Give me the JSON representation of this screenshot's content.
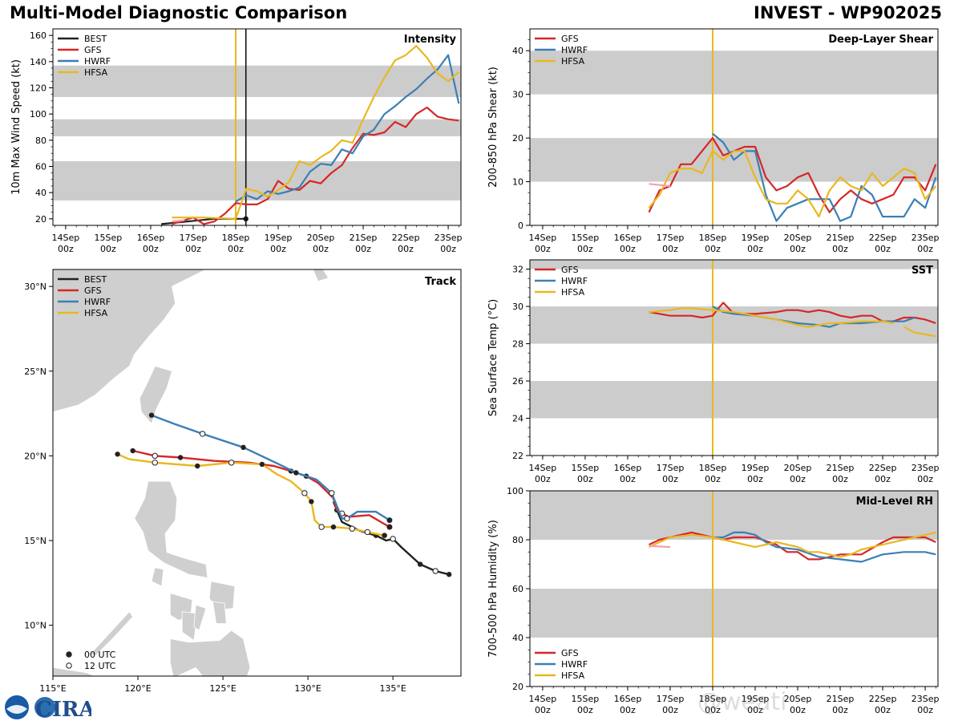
{
  "title": "Multi-Model Diagnostic Comparison",
  "storm": "INVEST - WP902025",
  "colors": {
    "BEST": "#222222",
    "GFS": "#d62728",
    "HWRF": "#3a7fb5",
    "HFSA": "#e8b820",
    "shade": "#cccccc",
    "init": "#e8b820",
    "prior": "#f4a0b0"
  },
  "watermark": "@weati",
  "time_ticks": [
    "14Sep",
    "15Sep",
    "16Sep",
    "17Sep",
    "18Sep",
    "19Sep",
    "20Sep",
    "21Sep",
    "22Sep",
    "23Sep"
  ],
  "time_tick_hour": "00z",
  "chart_data": [
    {
      "id": "intensity",
      "type": "line",
      "title": "Intensity",
      "ylabel": "10m Max Wind Speed (kt)",
      "xlim": [
        -4.3,
        5.3
      ],
      "ylim": [
        15,
        165
      ],
      "yticks": [
        20,
        40,
        60,
        80,
        100,
        120,
        140,
        160
      ],
      "shade": [
        [
          34,
          64
        ],
        [
          83,
          96
        ],
        [
          113,
          137
        ]
      ],
      "init_x": 0,
      "best_time_x": 0.24,
      "legend": [
        "BEST",
        "GFS",
        "HWRF",
        "HFSA"
      ],
      "series": [
        {
          "name": "BEST",
          "x": [
            -1.75,
            -0.5,
            0,
            0.24
          ],
          "y": [
            16,
            20,
            20,
            20
          ]
        },
        {
          "name": "GFS",
          "x": [
            -1.5,
            -1,
            -0.75,
            -0.5,
            -0.25,
            0,
            0.25,
            0.5,
            0.75,
            1,
            1.25,
            1.5,
            1.75,
            2,
            2.25,
            2.5,
            2.75,
            3,
            3.25,
            3.5,
            3.75,
            4,
            4.25,
            4.5,
            4.75,
            5,
            5.25
          ],
          "y": [
            16,
            21,
            16,
            18,
            24,
            32,
            31,
            31,
            35,
            49,
            43,
            42,
            49,
            47,
            55,
            61,
            74,
            85,
            84,
            86,
            94,
            90,
            100,
            105,
            98,
            96,
            95
          ]
        },
        {
          "name": "HWRF",
          "x": [
            0,
            0.25,
            0.5,
            0.75,
            1,
            1.25,
            1.5,
            1.75,
            2,
            2.25,
            2.5,
            2.75,
            3,
            3.25,
            3.5,
            3.75,
            4,
            4.25,
            4.5,
            4.75,
            5,
            5.25
          ],
          "y": [
            33,
            38,
            35,
            41,
            39,
            41,
            44,
            56,
            62,
            61,
            73,
            70,
            83,
            88,
            100,
            106,
            113,
            119,
            127,
            134,
            145,
            108
          ]
        },
        {
          "name": "HFSA",
          "x": [
            -1.5,
            -0.75,
            0,
            0.25,
            0.5,
            0.75,
            1,
            1.25,
            1.5,
            1.75,
            2,
            2.25,
            2.5,
            2.75,
            3,
            3.25,
            3.5,
            3.75,
            4,
            4.25,
            4.5,
            4.75,
            5,
            5.25
          ],
          "y": [
            21,
            21,
            20,
            43,
            41,
            37,
            42,
            48,
            64,
            61,
            67,
            72,
            80,
            78,
            96,
            113,
            128,
            141,
            145,
            152,
            143,
            131,
            125,
            132
          ]
        },
        {
          "name": "prior",
          "x": [
            -1.5,
            -1.2
          ],
          "y": [
            18,
            19
          ]
        }
      ]
    },
    {
      "id": "shear",
      "type": "line",
      "title": "Deep-Layer Shear",
      "ylabel": "200-850 hPa Shear (kt)",
      "xlim": [
        -4.3,
        5.3
      ],
      "ylim": [
        0,
        45
      ],
      "yticks": [
        0,
        10,
        20,
        30,
        40
      ],
      "shade": [
        [
          10,
          20
        ],
        [
          30,
          40
        ]
      ],
      "init_x": 0,
      "legend": [
        "GFS",
        "HWRF",
        "HFSA"
      ],
      "series": [
        {
          "name": "GFS",
          "x": [
            -1.5,
            -1.25,
            -1,
            -0.75,
            -0.5,
            -0.25,
            0,
            0.25,
            0.5,
            0.75,
            1,
            1.25,
            1.5,
            1.75,
            2,
            2.25,
            2.5,
            2.75,
            3,
            3.25,
            3.5,
            3.75,
            4,
            4.25,
            4.5,
            4.75,
            5,
            5.25
          ],
          "y": [
            3,
            8,
            9,
            14,
            14,
            17,
            20,
            16,
            17,
            18,
            18,
            11,
            8,
            9,
            11,
            12,
            7,
            3,
            6,
            8,
            6,
            5,
            6,
            7,
            11,
            11,
            8,
            14
          ]
        },
        {
          "name": "HWRF",
          "x": [
            0,
            0.25,
            0.5,
            0.75,
            1,
            1.25,
            1.5,
            1.75,
            2,
            2.25,
            2.5,
            2.75,
            3,
            3.25,
            3.5,
            3.75,
            4,
            4.25,
            4.5,
            4.75,
            5,
            5.25
          ],
          "y": [
            21,
            19,
            15,
            17,
            17,
            7,
            1,
            4,
            5,
            6,
            6,
            6,
            1,
            2,
            9,
            7,
            2,
            2,
            2,
            6,
            4,
            11
          ]
        },
        {
          "name": "HFSA",
          "x": [
            -1.5,
            -1.25,
            -1,
            -0.75,
            -0.5,
            -0.25,
            0,
            0.25,
            0.5,
            0.75,
            1,
            1.25,
            1.5,
            1.75,
            2,
            2.25,
            2.5,
            2.75,
            3,
            3.25,
            3.5,
            3.75,
            4,
            4.25,
            4.5,
            4.75,
            5,
            5.25
          ],
          "y": [
            4,
            7,
            12,
            13,
            13,
            12,
            17,
            15,
            17,
            17,
            11,
            6,
            5,
            5,
            8,
            6,
            2,
            8,
            11,
            9,
            8,
            12,
            9,
            11,
            13,
            12,
            6,
            9
          ]
        },
        {
          "name": "prior",
          "x": [
            -1.5,
            -1
          ],
          "y": [
            9.5,
            9
          ]
        }
      ]
    },
    {
      "id": "sst",
      "type": "line",
      "title": "SST",
      "ylabel": "Sea Surface Temp (°C)",
      "xlim": [
        -4.3,
        5.3
      ],
      "ylim": [
        22,
        32.5
      ],
      "yticks": [
        22,
        24,
        26,
        28,
        30,
        32
      ],
      "shade": [
        [
          24,
          26
        ],
        [
          28,
          30
        ],
        [
          32,
          32.5
        ]
      ],
      "init_x": 0,
      "legend": [
        "GFS",
        "HWRF",
        "HFSA"
      ],
      "series": [
        {
          "name": "GFS",
          "x": [
            -1.5,
            -1,
            -0.5,
            -0.25,
            0,
            0.1,
            0.25,
            0.5,
            1,
            1.5,
            1.75,
            2,
            2.25,
            2.5,
            2.75,
            3,
            3.25,
            3.5,
            3.75,
            4,
            4.25,
            4.5,
            4.75,
            5,
            5.25
          ],
          "y": [
            29.7,
            29.5,
            29.5,
            29.4,
            29.5,
            29.8,
            30.2,
            29.6,
            29.6,
            29.7,
            29.8,
            29.8,
            29.7,
            29.8,
            29.7,
            29.5,
            29.4,
            29.5,
            29.5,
            29.2,
            29.2,
            29.4,
            29.4,
            29.3,
            29.1
          ]
        },
        {
          "name": "HWRF",
          "x": [
            0,
            0.25,
            0.5,
            1,
            1.5,
            2,
            2.5,
            2.75,
            3,
            3.5,
            4,
            4.5,
            4.75
          ],
          "y": [
            30,
            29.7,
            29.6,
            29.5,
            29.3,
            29.1,
            29.0,
            28.9,
            29.1,
            29.1,
            29.2,
            29.2,
            29.4
          ]
        },
        {
          "name": "HFSA",
          "x": [
            -1.5,
            -1,
            -0.75,
            -0.5,
            0,
            0.5,
            1,
            1.5,
            2,
            2.25,
            2.5,
            2.75,
            3,
            3.5,
            4,
            4.25
          ],
          "y": [
            29.7,
            29.8,
            29.9,
            29.9,
            29.8,
            29.7,
            29.5,
            29.3,
            29.0,
            28.9,
            29.0,
            29.1,
            29.1,
            29.2,
            29.2,
            29.1
          ]
        },
        {
          "name": "HFSA",
          "x": [
            4.5,
            4.75,
            5,
            5.25
          ],
          "y": [
            28.9,
            28.6,
            28.5,
            28.4
          ]
        }
      ]
    },
    {
      "id": "rh",
      "type": "line",
      "title": "Mid-Level RH",
      "ylabel": "700-500 hPa Humidity (%)",
      "xlim": [
        -4.3,
        5.3
      ],
      "ylim": [
        20,
        100
      ],
      "yticks": [
        20,
        40,
        60,
        80,
        100
      ],
      "shade": [
        [
          40,
          60
        ],
        [
          80,
          100
        ]
      ],
      "init_x": 0,
      "legend": [
        "GFS",
        "HWRF",
        "HFSA"
      ],
      "series": [
        {
          "name": "GFS",
          "x": [
            -1.5,
            -1.25,
            -1,
            -0.5,
            0,
            0.25,
            0.5,
            1,
            1.5,
            1.75,
            2,
            2.25,
            2.5,
            2.75,
            3,
            3.5,
            4,
            4.25,
            4.5,
            4.75,
            5,
            5.25
          ],
          "y": [
            78,
            80,
            81,
            83,
            81,
            80,
            81,
            81,
            78,
            75,
            75,
            72,
            72,
            73,
            74,
            74,
            79,
            81,
            81,
            81,
            81,
            79
          ]
        },
        {
          "name": "HWRF",
          "x": [
            0,
            0.25,
            0.5,
            0.75,
            1,
            1.25,
            1.5,
            2,
            2.5,
            3,
            3.5,
            4,
            4.5,
            5,
            5.25
          ],
          "y": [
            81,
            81,
            83,
            83,
            82,
            79,
            77,
            76,
            73,
            72,
            71,
            74,
            75,
            75,
            74
          ]
        },
        {
          "name": "HFSA",
          "x": [
            -1.5,
            -1.25,
            -1,
            -0.5,
            0,
            0.5,
            1,
            1.5,
            2,
            2.25,
            2.5,
            3,
            3.25,
            3.5,
            4,
            4.5,
            4.75,
            5,
            5.25
          ],
          "y": [
            77,
            79,
            81,
            82,
            81,
            79,
            77,
            79,
            77,
            75,
            75,
            73,
            74,
            76,
            78,
            80,
            81,
            82,
            83
          ]
        },
        {
          "name": "prior",
          "x": [
            -1.5,
            -1
          ],
          "y": [
            77.5,
            77
          ]
        }
      ]
    },
    {
      "id": "track",
      "type": "scatter",
      "title": "Track",
      "xlim": [
        115,
        139
      ],
      "ylim": [
        7,
        31
      ],
      "xticks": [
        115,
        120,
        125,
        130,
        135
      ],
      "xtick_labels": [
        "115°E",
        "120°E",
        "125°E",
        "130°E",
        "135°E"
      ],
      "yticks": [
        10,
        15,
        20,
        25,
        30
      ],
      "ytick_labels": [
        "10°N",
        "15°N",
        "20°N",
        "25°N",
        "30°N"
      ],
      "legend": [
        "BEST",
        "GFS",
        "HWRF",
        "HFSA"
      ],
      "marker_legend": [
        "00 UTC",
        "12 UTC"
      ],
      "series": [
        {
          "name": "BEST",
          "lon": [
            138.3,
            137.5,
            136.6,
            135.5,
            135,
            134.6,
            134,
            133.6,
            133,
            132.4,
            132,
            131.7,
            131.5
          ],
          "lat": [
            13,
            13.2,
            13.6,
            14.6,
            15.1,
            15,
            15.3,
            15.4,
            15.6,
            15.9,
            16.1,
            16.8,
            17.3
          ],
          "m00": [
            0,
            2,
            6,
            11
          ],
          "m12": [
            1,
            4
          ]
        },
        {
          "name": "GFS",
          "lon": [
            134.8,
            133.6,
            132.4,
            132,
            131.7,
            131.5,
            130.6,
            129.9,
            129,
            128,
            126.5,
            124.5,
            122.5,
            121,
            119.7
          ],
          "lat": [
            15.8,
            16.5,
            16.4,
            16.6,
            16.8,
            17.5,
            18.4,
            18.8,
            19.1,
            19.4,
            19.6,
            19.7,
            19.9,
            20,
            20.3
          ],
          "m00": [
            0,
            7,
            8,
            12,
            14
          ],
          "m12": [
            3,
            13
          ]
        },
        {
          "name": "HWRF",
          "lon": [
            134.8,
            134,
            132.9,
            132.3,
            132,
            131.4,
            130.5,
            129.3,
            128.3,
            126.2,
            123.8,
            122.1,
            120.8
          ],
          "lat": [
            16.2,
            16.7,
            16.7,
            16.3,
            16.3,
            17.8,
            18.6,
            19,
            19.5,
            20.5,
            21.3,
            21.9,
            22.4
          ],
          "m00": [
            0,
            7,
            9,
            12
          ],
          "m12": [
            3,
            5,
            10
          ]
        },
        {
          "name": "HFSA",
          "lon": [
            134.5,
            133.5,
            132.6,
            131.5,
            130.8,
            130.4,
            130.2,
            129.8,
            129,
            128.2,
            127.3,
            125.5,
            123.5,
            121,
            119.5,
            118.8
          ],
          "lat": [
            15.3,
            15.5,
            15.7,
            15.8,
            15.8,
            16.2,
            17.3,
            17.8,
            18.5,
            18.9,
            19.5,
            19.6,
            19.4,
            19.6,
            19.8,
            20.1
          ],
          "m00": [
            0,
            3,
            6,
            10,
            12,
            15
          ],
          "m12": [
            1,
            2,
            4,
            7,
            11,
            13
          ]
        }
      ]
    }
  ]
}
